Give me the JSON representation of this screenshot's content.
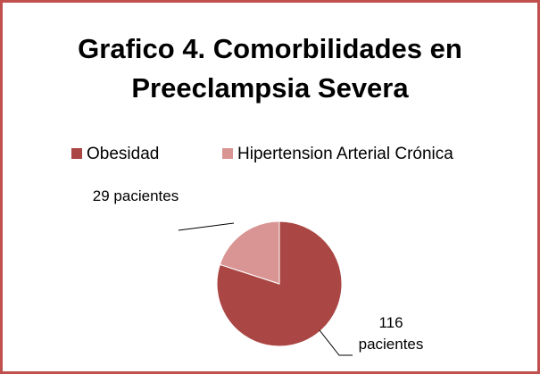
{
  "chart_data": {
    "type": "pie",
    "title": "Grafico 4. Comorbilidades en Preeclampsia Severa",
    "categories": [
      "Obesidad",
      "Hipertension Arterial Crónica"
    ],
    "values": [
      116,
      29
    ],
    "value_labels": [
      "116 pacientes",
      "29 pacientes"
    ],
    "colors": [
      "#aa4643",
      "#d99594"
    ],
    "legend": "top"
  }
}
